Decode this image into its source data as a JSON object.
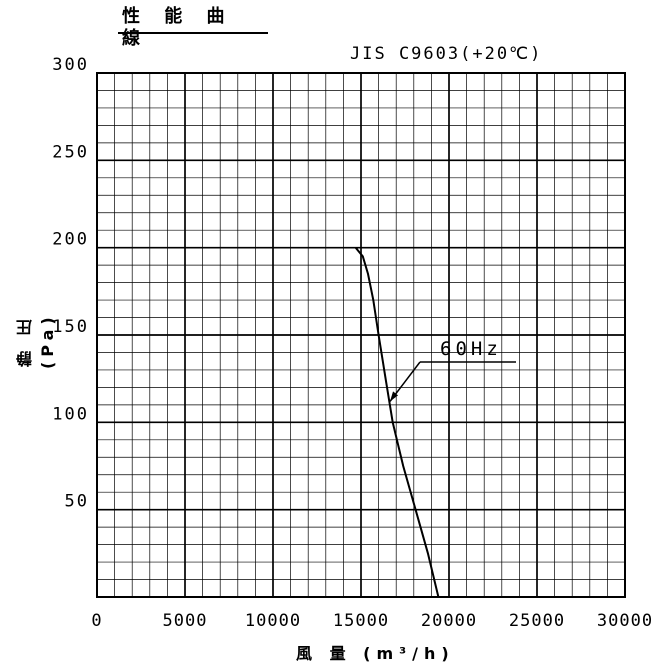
{
  "chart_data": {
    "type": "line",
    "title": "性 能 曲 線",
    "subtitle": "JIS C9603(+20℃)",
    "xlabel": "風 量 (m³/h)",
    "ylabel": "静 圧 (Pa)",
    "xlim": [
      0,
      30000
    ],
    "ylim": [
      0,
      300
    ],
    "x_ticks": [
      0,
      5000,
      10000,
      15000,
      20000,
      25000,
      30000
    ],
    "y_ticks": [
      50,
      100,
      150,
      200,
      250,
      300
    ],
    "grid": true,
    "series": [
      {
        "name": "60Hz",
        "x": [
          14700,
          15100,
          15400,
          15700,
          16000,
          16400,
          16800,
          17400,
          18100,
          18800,
          19400
        ],
        "y": [
          200,
          195,
          185,
          170,
          150,
          125,
          100,
          75,
          50,
          25,
          0
        ]
      }
    ],
    "annotations": [
      {
        "text": "60Hz",
        "points_to": {
          "x": 16650,
          "y": 112
        }
      }
    ]
  }
}
